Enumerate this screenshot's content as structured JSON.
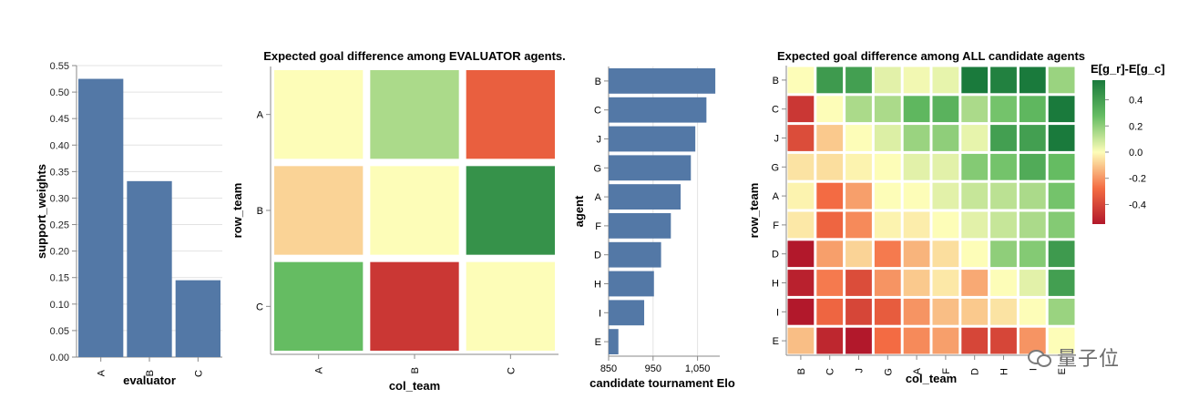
{
  "chart_data": [
    {
      "type": "bar",
      "orientation": "vertical",
      "xlabel": "evaluator",
      "ylabel": "support_weights",
      "categories": [
        "A",
        "B",
        "C"
      ],
      "values": [
        0.525,
        0.332,
        0.145
      ],
      "ylim": [
        0,
        0.55
      ],
      "yticks": [
        "0.00",
        "0.05",
        "0.10",
        "0.15",
        "0.20",
        "0.25",
        "0.30",
        "0.35",
        "0.40",
        "0.45",
        "0.50",
        "0.55"
      ],
      "bar_color": "#5378a6",
      "grid": true
    },
    {
      "type": "heatmap",
      "title": "Expected goal difference among EVALUATOR agents.",
      "xlabel": "col_team",
      "ylabel": "row_team",
      "rows": [
        "A",
        "B",
        "C"
      ],
      "cols": [
        "A",
        "B",
        "C"
      ],
      "values": [
        [
          0.0,
          0.15,
          -0.32
        ],
        [
          -0.08,
          0.0,
          0.45
        ],
        [
          0.28,
          -0.45,
          0.0
        ]
      ],
      "color_scale": [
        "#b2182b",
        "#f46d43",
        "#fdfdb8",
        "#66bd63",
        "#1a7a3c"
      ],
      "domain": [
        -0.55,
        0.55
      ]
    },
    {
      "type": "bar",
      "orientation": "horizontal",
      "xlabel": "candidate tournament Elo",
      "ylabel": "agent",
      "categories": [
        "B",
        "C",
        "J",
        "G",
        "A",
        "F",
        "D",
        "H",
        "I",
        "E"
      ],
      "values": [
        1090,
        1070,
        1045,
        1035,
        1012,
        990,
        968,
        952,
        930,
        872
      ],
      "xlim": [
        850,
        1100
      ],
      "xticks": [
        "850",
        "950",
        "1,050"
      ],
      "bar_color": "#5378a6",
      "grid": true
    },
    {
      "type": "heatmap",
      "title": "Expected goal difference among ALL candidate agents",
      "xlabel": "col_team",
      "ylabel": "row_team",
      "rows": [
        "B",
        "C",
        "J",
        "G",
        "A",
        "F",
        "D",
        "H",
        "I",
        "E"
      ],
      "cols": [
        "B",
        "C",
        "J",
        "G",
        "A",
        "F",
        "D",
        "H",
        "I",
        "E"
      ],
      "values": [
        [
          0.0,
          0.42,
          0.4,
          0.05,
          0.02,
          0.04,
          0.55,
          0.52,
          0.58,
          0.18
        ],
        [
          -0.45,
          0.0,
          0.15,
          0.15,
          0.3,
          0.32,
          0.15,
          0.25,
          0.3,
          0.55
        ],
        [
          -0.38,
          -0.1,
          0.0,
          0.06,
          0.18,
          0.2,
          0.04,
          0.4,
          0.4,
          0.58
        ],
        [
          -0.05,
          -0.06,
          -0.02,
          0.0,
          0.05,
          0.05,
          0.22,
          0.25,
          0.35,
          0.28
        ],
        [
          -0.02,
          -0.28,
          -0.18,
          0.0,
          0.0,
          0.05,
          0.1,
          0.12,
          0.15,
          0.25
        ],
        [
          -0.04,
          -0.3,
          -0.22,
          -0.02,
          -0.03,
          0.0,
          0.05,
          0.1,
          0.15,
          0.22
        ],
        [
          -0.55,
          -0.18,
          -0.08,
          -0.25,
          -0.14,
          -0.06,
          0.0,
          0.2,
          0.22,
          0.42
        ],
        [
          -0.52,
          -0.25,
          -0.38,
          -0.2,
          -0.1,
          -0.04,
          -0.16,
          0.0,
          0.05,
          0.4
        ],
        [
          -0.58,
          -0.3,
          -0.4,
          -0.33,
          -0.2,
          -0.12,
          -0.1,
          -0.05,
          0.0,
          0.18
        ],
        [
          -0.12,
          -0.5,
          -0.55,
          -0.28,
          -0.22,
          -0.18,
          -0.4,
          -0.4,
          -0.2,
          0.0
        ]
      ],
      "color_scale": [
        "#b2182b",
        "#f46d43",
        "#fdfdb8",
        "#66bd63",
        "#1a7a3c"
      ],
      "domain": [
        -0.55,
        0.55
      ],
      "legend": {
        "title": "E[g_r]-E[g_c]",
        "ticks": [
          "0.4",
          "0.2",
          "0.0",
          "-0.2",
          "-0.4"
        ],
        "tick_values": [
          0.4,
          0.2,
          0.0,
          -0.2,
          -0.4
        ]
      }
    }
  ],
  "watermark": {
    "text": "量子位",
    "icon": "wechat-icon"
  }
}
